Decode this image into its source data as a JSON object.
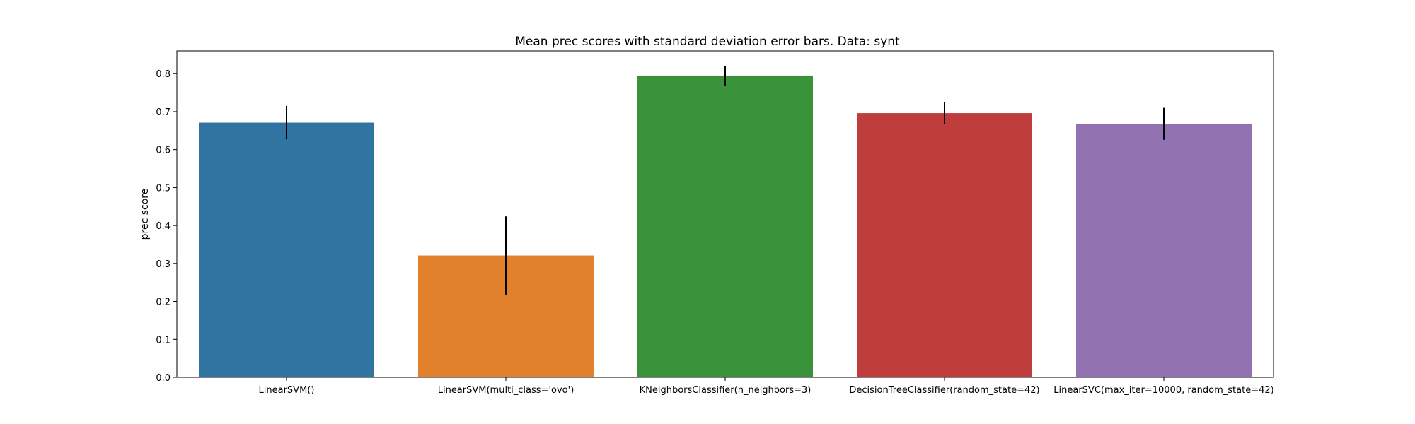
{
  "chart_data": {
    "type": "bar",
    "title": "Mean prec scores with standard deviation error bars. Data: synt",
    "xlabel": "",
    "ylabel": "prec score",
    "ylim": [
      0,
      0.86
    ],
    "yticks": [
      "0.0",
      "0.1",
      "0.2",
      "0.3",
      "0.4",
      "0.5",
      "0.6",
      "0.7",
      "0.8"
    ],
    "categories": [
      "LinearSVM()",
      "LinearSVM(multi_class='ovo')",
      "KNeighborsClassifier(n_neighbors=3)",
      "DecisionTreeClassifier(random_state=42)",
      "LinearSVC(max_iter=10000, random_state=42)"
    ],
    "values": [
      0.671,
      0.321,
      0.795,
      0.696,
      0.668
    ],
    "errors": [
      0.044,
      0.103,
      0.026,
      0.029,
      0.042
    ],
    "colors": [
      "#3274a1",
      "#e1812c",
      "#3a923a",
      "#c03d3e",
      "#9372b2"
    ],
    "error_bar_color": "#000000",
    "grid": false,
    "legend": "none"
  }
}
